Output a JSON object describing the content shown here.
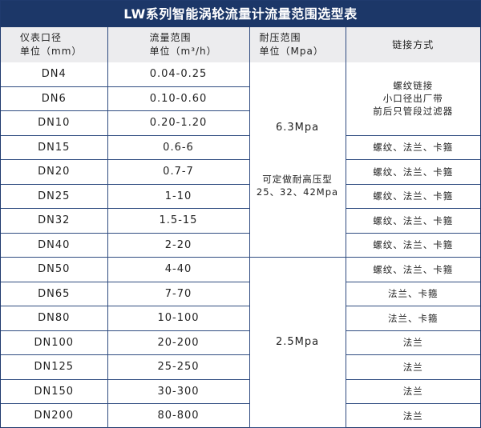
{
  "title": "LW系列智能涡轮流量计流量范围选型表",
  "headers": {
    "size": [
      "仪表口径",
      "单位（mm）"
    ],
    "flow": [
      "流量范围",
      "单位（m³/h）"
    ],
    "pressure": [
      "耐压范围",
      "单位（Mpa）"
    ],
    "connection": "链接方式"
  },
  "rows": [
    {
      "size": "DN4",
      "flow": "0.04-0.25"
    },
    {
      "size": "DN6",
      "flow": "0.10-0.60"
    },
    {
      "size": "DN10",
      "flow": "0.20-1.20"
    },
    {
      "size": "DN15",
      "flow": "0.6-6"
    },
    {
      "size": "DN20",
      "flow": "0.7-7"
    },
    {
      "size": "DN25",
      "flow": "1-10"
    },
    {
      "size": "DN32",
      "flow": "1.5-15"
    },
    {
      "size": "DN40",
      "flow": "2-20"
    },
    {
      "size": "DN50",
      "flow": "4-40"
    },
    {
      "size": "DN65",
      "flow": "7-70"
    },
    {
      "size": "DN80",
      "flow": "10-100"
    },
    {
      "size": "DN100",
      "flow": "20-200"
    },
    {
      "size": "DN125",
      "flow": "25-250"
    },
    {
      "size": "DN150",
      "flow": "30-300"
    },
    {
      "size": "DN200",
      "flow": "80-800"
    }
  ],
  "pressure": {
    "high": "6.3Mpa",
    "high_note": [
      "可定做耐高压型",
      "25、32、42Mpa"
    ],
    "low": "2.5Mpa"
  },
  "connection": {
    "small": [
      "螺纹链接",
      "小口径出厂带",
      "前后只管段过滤器"
    ],
    "full": "螺纹、法兰、卡箍",
    "flange_clamp": "法兰、卡箍",
    "flange": "法兰"
  }
}
